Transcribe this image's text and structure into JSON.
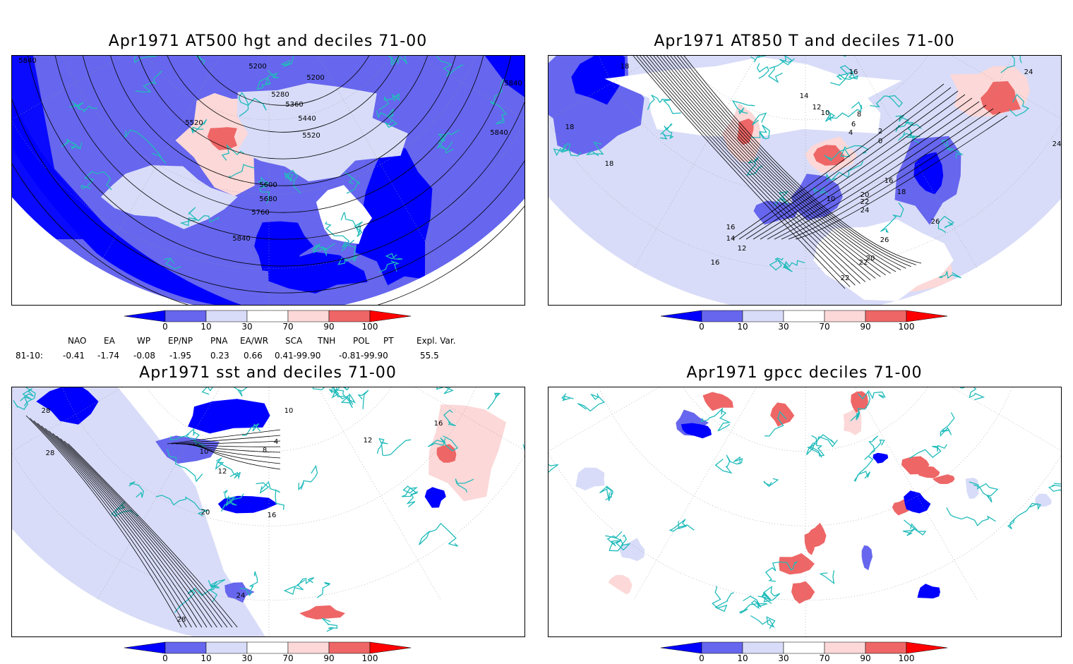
{
  "panels": [
    {
      "title": "Apr1971 AT500 hgt and deciles 71-00",
      "contour_labels": [
        "5200",
        "5200",
        "5280",
        "5360",
        "5440",
        "5520",
        "5520",
        "5600",
        "5680",
        "5760",
        "5840",
        "5840",
        "5840",
        "5840"
      ]
    },
    {
      "title": "Apr1971 AT850 T and deciles 71-00",
      "contour_labels": [
        "18",
        "16",
        "14",
        "12",
        "10",
        "8",
        "6",
        "4",
        "2",
        "0",
        "18",
        "18",
        "16",
        "14",
        "12",
        "10",
        "16",
        "18",
        "20",
        "22",
        "24",
        "24",
        "26",
        "26",
        "22",
        "20",
        "22",
        "24",
        "16"
      ]
    },
    {
      "title": "Apr1971 sst and deciles 71-00",
      "contour_labels": [
        "28",
        "28",
        "10",
        "10",
        "8",
        "4",
        "12",
        "20",
        "16",
        "24",
        "28",
        "16",
        "12"
      ]
    },
    {
      "title": "Apr1971 gpcc deciles 71-00",
      "contour_labels": []
    }
  ],
  "colorbar": {
    "ticks": [
      "0",
      "10",
      "30",
      "70",
      "90",
      "100"
    ],
    "colors": [
      "#0000ff",
      "#6666ee",
      "#d8dcf8",
      "#ffffff",
      "#fcd8d8",
      "#ee6666",
      "#ff0000"
    ]
  },
  "teleconnection": {
    "headers": [
      "NAO",
      "EA",
      "WP",
      "EP/NP",
      "PNA",
      "EA/WR",
      "SCA",
      "TNH",
      "POL",
      "PT",
      "Expl. Var."
    ],
    "row_label": "81-10:",
    "values": [
      "-0.41",
      "-1.74",
      "-0.08",
      "-1.95",
      "0.23",
      "0.66",
      "0.41-99.90",
      "-0.81-99.90",
      "55.5"
    ]
  },
  "colors": {
    "coastline": "#22bbbb",
    "contour": "#000000",
    "grid": "#999999"
  }
}
